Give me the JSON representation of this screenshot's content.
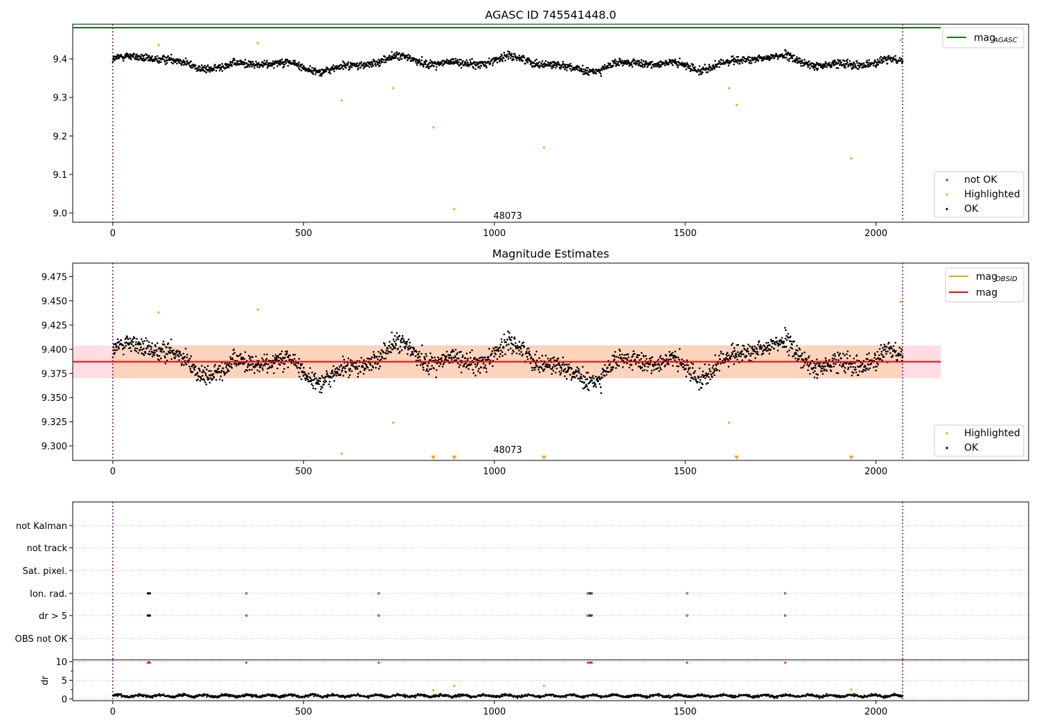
{
  "colors": {
    "ok": "#000000",
    "highlighted": "#ffa500",
    "not_ok": "#ff0000",
    "agasc_line": "#008000",
    "obsid_line": "#ffa500",
    "mean_line": "#ff0000",
    "band_outer": "#ffdde3",
    "band_inner": "#fdd3bd",
    "obs_boundary": "#800080"
  },
  "chart_data": [
    {
      "type": "scatter",
      "title": "AGASC ID 745541448.0",
      "xlim": [
        -105,
        2400
      ],
      "ylim": [
        8.976,
        9.49
      ],
      "x_ticks": [
        0,
        500,
        1000,
        1500,
        2000
      ],
      "y_ticks": [
        9.0,
        9.1,
        9.2,
        9.3,
        9.4
      ],
      "y_tick_labels": [
        "9.0",
        "9.1",
        "9.2",
        "9.3",
        "9.4"
      ],
      "grid": false,
      "obs_boundaries": [
        0,
        2070
      ],
      "annotation": {
        "text": "48073",
        "x": 1035,
        "y": 8.985
      },
      "mag_agasc": 9.481,
      "ok_points": {
        "count": 2070,
        "x_range": [
          0,
          2070
        ],
        "y_range": [
          9.34,
          9.43
        ],
        "baseline": 9.388
      },
      "highlighted": [
        {
          "x": 120,
          "y": 9.436
        },
        {
          "x": 380,
          "y": 9.441
        },
        {
          "x": 600,
          "y": 9.292
        },
        {
          "x": 735,
          "y": 9.324
        },
        {
          "x": 840,
          "y": 9.222
        },
        {
          "x": 895,
          "y": 9.01
        },
        {
          "x": 1130,
          "y": 9.17
        },
        {
          "x": 1615,
          "y": 9.324
        },
        {
          "x": 1635,
          "y": 9.28
        },
        {
          "x": 1935,
          "y": 9.142
        },
        {
          "x": 2065,
          "y": 9.449
        }
      ],
      "legend_lines": [
        {
          "label": "mag",
          "sub": "AGASC",
          "color": "#008000"
        }
      ],
      "legend_points": [
        {
          "label": "not OK",
          "color": "#ff0000"
        },
        {
          "label": "Highlighted",
          "color": "#ffa500"
        },
        {
          "label": "OK",
          "color": "#000000"
        }
      ]
    },
    {
      "type": "scatter",
      "title": "Magnitude Estimates",
      "xlim": [
        -105,
        2400
      ],
      "ylim": [
        9.285,
        9.489
      ],
      "x_ticks": [
        0,
        500,
        1000,
        1500,
        2000
      ],
      "y_ticks": [
        9.3,
        9.325,
        9.35,
        9.375,
        9.4,
        9.425,
        9.45,
        9.475
      ],
      "y_tick_labels": [
        "9.300",
        "9.325",
        "9.350",
        "9.375",
        "9.400",
        "9.425",
        "9.450",
        "9.475"
      ],
      "grid": false,
      "obs_boundaries": [
        0,
        2070
      ],
      "annotation": {
        "text": "48073",
        "x": 1035,
        "y": 9.293
      },
      "mag_mean": 9.387,
      "band_outer": [
        9.37,
        9.404
      ],
      "band_inner": [
        9.37,
        9.404
      ],
      "band_x": [
        -105,
        2170
      ],
      "band_inner_x": [
        0,
        2070
      ],
      "ok_points": {
        "count": 2070,
        "x_range": [
          0,
          2070
        ],
        "y_range": [
          9.338,
          9.432
        ],
        "baseline": 9.387
      },
      "highlighted": [
        {
          "x": 120,
          "y": 9.438
        },
        {
          "x": 380,
          "y": 9.441
        },
        {
          "x": 600,
          "y": 9.292
        },
        {
          "x": 735,
          "y": 9.324
        },
        {
          "x": 1615,
          "y": 9.324
        },
        {
          "x": 2065,
          "y": 9.449
        }
      ],
      "off_scale_markers": [
        840,
        895,
        1130,
        1635,
        1935
      ],
      "legend_lines": [
        {
          "label": "mag",
          "sub": "OBSID",
          "color": "#ffa500"
        },
        {
          "label": "mag",
          "sub": "",
          "color": "#ff0000"
        }
      ],
      "legend_points": [
        {
          "label": "Highlighted",
          "color": "#ffa500"
        },
        {
          "label": "OK",
          "color": "#000000"
        }
      ]
    },
    {
      "type": "scatter",
      "title": "",
      "xlim": [
        -105,
        2400
      ],
      "x_ticks": [
        0,
        500,
        1000,
        1500,
        2000
      ],
      "flag_rows": [
        "not Kalman",
        "not track",
        "Sat. pixel.",
        "Ion. rad.",
        "dr > 5",
        "OBS not OK"
      ],
      "flag_points": [
        {
          "row": "Ion. rad.",
          "x": [
            92,
            93,
            94,
            95,
            96,
            97,
            350,
            697,
            1245,
            1250,
            1252,
            1255,
            1505,
            1762
          ]
        },
        {
          "row": "dr > 5",
          "x": [
            92,
            93,
            94,
            95,
            96,
            97,
            350,
            697,
            1245,
            1250,
            1252,
            1255,
            1505,
            1762
          ]
        }
      ],
      "obs_boundaries": [
        0,
        2070
      ]
    },
    {
      "type": "scatter",
      "ylabel": "dr",
      "xlim": [
        -105,
        2400
      ],
      "ylim": [
        -0.5,
        10.5
      ],
      "x_ticks": [
        0,
        500,
        1000,
        1500,
        2000
      ],
      "y_ticks": [
        0,
        5,
        10
      ],
      "y_tick_labels": [
        "0",
        "5",
        "10"
      ],
      "ok_points": {
        "count": 2070,
        "x_range": [
          0,
          2070
        ],
        "y_range": [
          0.1,
          1.8
        ],
        "baseline": 0.8
      },
      "clipped_markers": [
        92,
        93,
        94,
        95,
        96,
        97,
        350,
        697,
        1245,
        1250,
        1252,
        1255,
        1505,
        1762
      ],
      "clipped_value": 9.8,
      "highlighted": [
        {
          "x": 840,
          "y": 2.3
        },
        {
          "x": 895,
          "y": 3.5
        },
        {
          "x": 1130,
          "y": 3.5
        },
        {
          "x": 1935,
          "y": 2.5
        }
      ],
      "obs_boundaries": [
        0,
        2070
      ]
    }
  ]
}
